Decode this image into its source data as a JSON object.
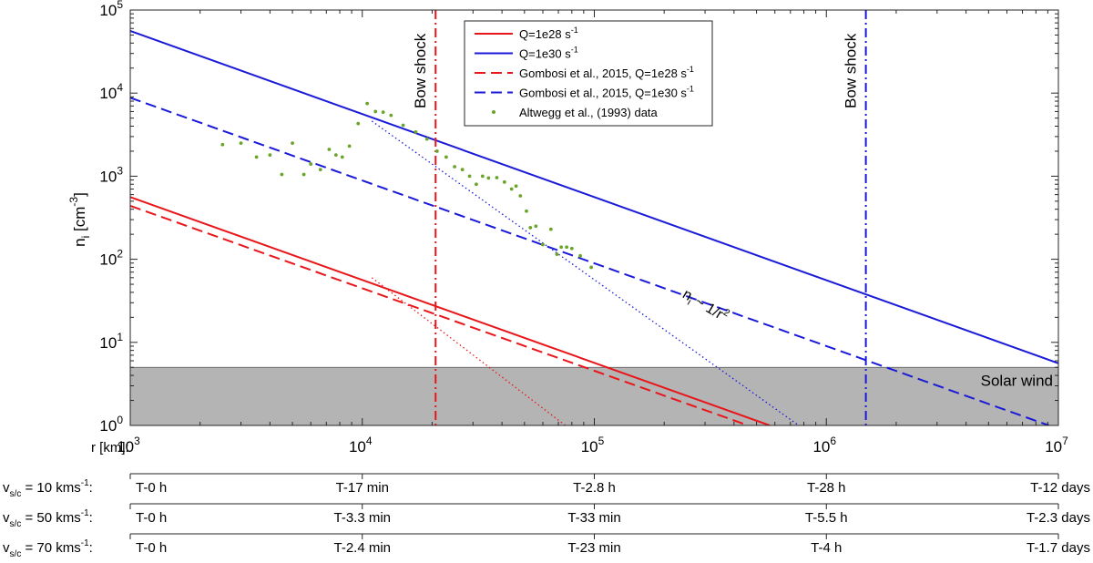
{
  "chart_data": {
    "type": "line",
    "xscale": "log",
    "yscale": "log",
    "xlim": [
      1000,
      10000000
    ],
    "ylim": [
      1,
      100000
    ],
    "x_ticks": [
      {
        "base": "10",
        "exp": "3"
      },
      {
        "base": "10",
        "exp": "4"
      },
      {
        "base": "10",
        "exp": "5"
      },
      {
        "base": "10",
        "exp": "6"
      },
      {
        "base": "10",
        "exp": "7"
      }
    ],
    "y_ticks": [
      {
        "base": "10",
        "exp": "0"
      },
      {
        "base": "10",
        "exp": "1"
      },
      {
        "base": "10",
        "exp": "2"
      },
      {
        "base": "10",
        "exp": "3"
      },
      {
        "base": "10",
        "exp": "4"
      },
      {
        "base": "10",
        "exp": "5"
      }
    ],
    "ylabel": {
      "main": "n",
      "sub": "i",
      "unit_pre": " [cm",
      "unit_sup": "-3",
      "unit_post": "]"
    },
    "xlabel": "r [km]:",
    "legend": [
      {
        "pre": "Q=1e28 s",
        "sup": "-1",
        "color": "#e8161b",
        "style": "solid"
      },
      {
        "pre": "Q=1e30 s",
        "sup": "-1",
        "color": "#1a1ad8",
        "style": "solid"
      },
      {
        "pre": "Gombosi et al., 2015, Q=1e28 s",
        "sup": "-1",
        "color": "#e8161b",
        "style": "dashed"
      },
      {
        "pre": "Gombosi et al., 2015, Q=1e30 s",
        "sup": "-1",
        "color": "#1a1ad8",
        "style": "dashed"
      },
      {
        "pre": "Altwegg et al., (1993) data",
        "sup": "",
        "color": "#6aa52a",
        "style": "dot"
      }
    ],
    "series": [
      {
        "name": "Q=1e28 s-1",
        "color": "#e8161b",
        "style": "solid",
        "points": [
          [
            1000,
            560
          ],
          [
            570000,
            1
          ]
        ]
      },
      {
        "name": "Q=1e30 s-1",
        "color": "#1a1ad8",
        "style": "solid",
        "points": [
          [
            1000,
            56000
          ],
          [
            10000000,
            5.6
          ]
        ]
      },
      {
        "name": "Gombosi et al., 2015, Q=1e28 s-1",
        "color": "#e8161b",
        "style": "dashed",
        "points": [
          [
            1000,
            440
          ],
          [
            460000,
            1
          ]
        ]
      },
      {
        "name": "Gombosi et al., 2015, Q=1e30 s-1",
        "color": "#1a1ad8",
        "style": "dashed",
        "points": [
          [
            1000,
            8800
          ],
          [
            9100000,
            1
          ]
        ]
      },
      {
        "name": "red dotted",
        "color": "#e8161b",
        "style": "dotted",
        "points": [
          [
            11000,
            60
          ],
          [
            75000,
            1
          ]
        ]
      },
      {
        "name": "blue dotted",
        "color": "#1a1ad8",
        "style": "dotted",
        "points": [
          [
            11000,
            4600
          ],
          [
            760000,
            1
          ]
        ]
      }
    ],
    "scatter": {
      "name": "Altwegg et al., (1993) data",
      "color": "#6aa52a",
      "points": [
        [
          2500,
          2400
        ],
        [
          3000,
          2500
        ],
        [
          3500,
          1700
        ],
        [
          4000,
          1800
        ],
        [
          4500,
          1050
        ],
        [
          5000,
          2500
        ],
        [
          5600,
          1050
        ],
        [
          6000,
          1400
        ],
        [
          6600,
          1200
        ],
        [
          7200,
          2100
        ],
        [
          7700,
          1800
        ],
        [
          8200,
          1700
        ],
        [
          8800,
          2300
        ],
        [
          9600,
          4300
        ],
        [
          10500,
          7500
        ],
        [
          11400,
          6000
        ],
        [
          12300,
          5900
        ],
        [
          13300,
          5400
        ],
        [
          15000,
          4100
        ],
        [
          17000,
          3400
        ],
        [
          19000,
          2800
        ],
        [
          21000,
          2000
        ],
        [
          23000,
          1700
        ],
        [
          25000,
          1300
        ],
        [
          27000,
          1200
        ],
        [
          29000,
          1000
        ],
        [
          31000,
          800
        ],
        [
          33000,
          1000
        ],
        [
          35000,
          950
        ],
        [
          38000,
          960
        ],
        [
          41000,
          850
        ],
        [
          44000,
          700
        ],
        [
          46000,
          760
        ],
        [
          48000,
          580
        ],
        [
          51000,
          380
        ],
        [
          53000,
          240
        ],
        [
          56000,
          250
        ],
        [
          60000,
          150
        ],
        [
          65000,
          230
        ],
        [
          69000,
          115
        ],
        [
          72000,
          140
        ],
        [
          76000,
          140
        ],
        [
          80000,
          135
        ],
        [
          87000,
          110
        ],
        [
          97000,
          80
        ]
      ]
    },
    "vertical_lines": [
      {
        "x": 20700,
        "color": "#e8161b",
        "label": "Bow shock"
      },
      {
        "x": 1480000,
        "color": "#1a1ad8",
        "label": "Bow shock"
      }
    ],
    "shaded_region": {
      "y_from": 1,
      "y_to": 5,
      "color": "#b4b4b4",
      "label": "Solar wind"
    },
    "annotation": {
      "text_main": "n",
      "text_sub": "i",
      "text_rest": " ~ 1/r",
      "text_sup": "2",
      "x": 270000,
      "y": 15
    }
  },
  "time_axes": [
    {
      "label_pre": "v",
      "label_sub": "s/c",
      "label_post": " = 10 kms",
      "label_sup": "-1",
      "label_end": ":",
      "ticks": [
        "T-0 h",
        "T-17 min",
        "T-2.8 h",
        "T-28 h",
        "T-12 days"
      ]
    },
    {
      "label_pre": "v",
      "label_sub": "s/c",
      "label_post": " = 50 kms",
      "label_sup": "-1",
      "label_end": ":",
      "ticks": [
        "T-0 h",
        "T-3.3 min",
        "T-33 min",
        "T-5.5 h",
        "T-2.3 days"
      ]
    },
    {
      "label_pre": "v",
      "label_sub": "s/c",
      "label_post": " = 70 kms",
      "label_sup": "-1",
      "label_end": ":",
      "ticks": [
        "T-0 h",
        "T-2.4 min",
        "T-23 min",
        "T-4 h",
        "T-1.7 days"
      ]
    }
  ]
}
